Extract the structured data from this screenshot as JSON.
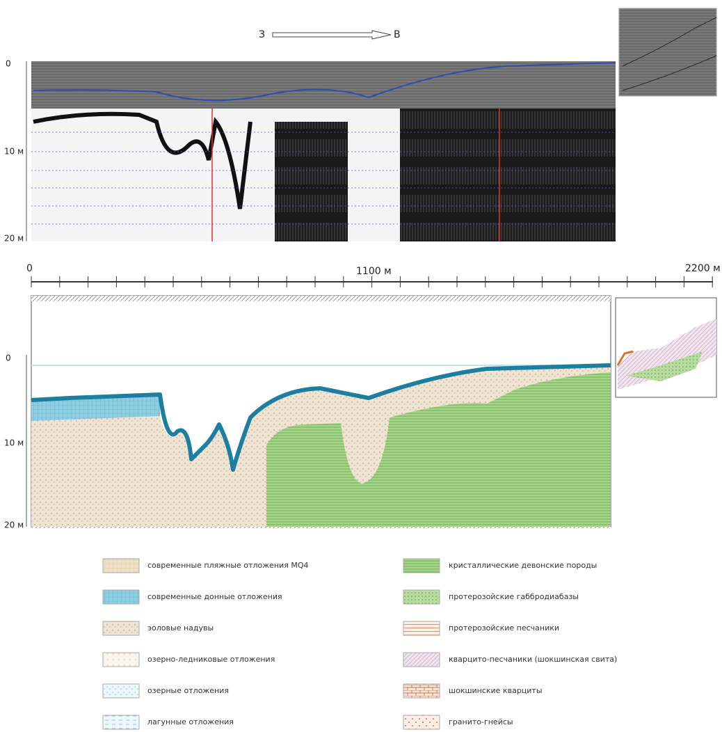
{
  "direction": {
    "from": "З",
    "to": "В"
  },
  "radargram": {
    "depth_labels": [
      "0",
      "10 м",
      "20 м"
    ]
  },
  "scale": {
    "labels": [
      "0",
      "1100 м",
      "2200 м"
    ]
  },
  "section": {
    "depth_labels": [
      "0",
      "10 м",
      "20 м"
    ]
  },
  "legend": {
    "items": [
      "современные пляжные отложения MQ4",
      "современные донные отложения",
      "эоловые надувы",
      "озерно-ледниковые отложения",
      "озерные отложения",
      "лагунные отложения",
      "кристаллические девонские породы",
      "протерозойские габбродиабазы",
      "протерозойские песчаники",
      "кварцито-песчаники (шокшинская свита)",
      "шокшинские кварциты",
      "гранито-гнейсы"
    ]
  }
}
